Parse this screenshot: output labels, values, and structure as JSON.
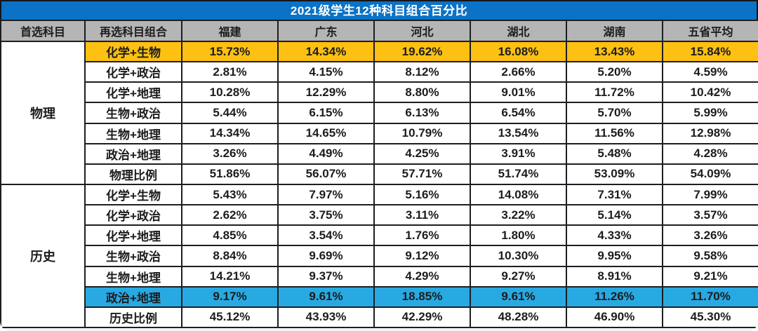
{
  "title": "2021级学生12种科目组合百分比",
  "colors": {
    "title_bar_blue": "#0b72c5",
    "title_text": "#ffffff",
    "header_gray": "#b5b5b5",
    "highlight_orange": "#fdc013",
    "highlight_blue": "#29a9e2",
    "cell_text": "#1c1c1c",
    "border_black": "#1d1e22"
  },
  "table": {
    "headers": [
      "首选科目",
      "再选科目组合",
      "福建",
      "广东",
      "河北",
      "湖北",
      "湖南",
      "五省平均"
    ],
    "sections": [
      {
        "first_subject": "物理",
        "rows": [
          {
            "combo": "化学+生物",
            "values": [
              "15.73%",
              "14.34%",
              "19.62%",
              "16.08%",
              "13.43%",
              "15.84%"
            ],
            "highlight": "orange"
          },
          {
            "combo": "化学+政治",
            "values": [
              "2.81%",
              "4.15%",
              "8.12%",
              "2.66%",
              "5.20%",
              "4.59%"
            ],
            "highlight": null
          },
          {
            "combo": "化学+地理",
            "values": [
              "10.28%",
              "12.29%",
              "8.80%",
              "9.01%",
              "11.72%",
              "10.42%"
            ],
            "highlight": null
          },
          {
            "combo": "生物+政治",
            "values": [
              "5.44%",
              "6.15%",
              "6.13%",
              "6.54%",
              "5.70%",
              "5.99%"
            ],
            "highlight": null
          },
          {
            "combo": "生物+地理",
            "values": [
              "14.34%",
              "14.65%",
              "10.79%",
              "13.54%",
              "11.56%",
              "12.98%"
            ],
            "highlight": null
          },
          {
            "combo": "政治+地理",
            "values": [
              "3.26%",
              "4.49%",
              "4.25%",
              "3.91%",
              "5.48%",
              "4.28%"
            ],
            "highlight": null
          },
          {
            "combo": "物理比例",
            "values": [
              "51.86%",
              "56.07%",
              "57.71%",
              "51.74%",
              "53.09%",
              "54.09%"
            ],
            "highlight": null
          }
        ]
      },
      {
        "first_subject": "历史",
        "rows": [
          {
            "combo": "化学+生物",
            "values": [
              "5.43%",
              "7.97%",
              "5.16%",
              "14.08%",
              "7.31%",
              "7.99%"
            ],
            "highlight": null
          },
          {
            "combo": "化学+政治",
            "values": [
              "2.62%",
              "3.75%",
              "3.11%",
              "3.22%",
              "5.14%",
              "3.57%"
            ],
            "highlight": null
          },
          {
            "combo": "化学+地理",
            "values": [
              "4.85%",
              "3.54%",
              "1.76%",
              "1.80%",
              "4.33%",
              "3.26%"
            ],
            "highlight": null
          },
          {
            "combo": "生物+政治",
            "values": [
              "8.84%",
              "9.69%",
              "9.12%",
              "10.30%",
              "9.95%",
              "9.58%"
            ],
            "highlight": null
          },
          {
            "combo": "生物+地理",
            "values": [
              "14.21%",
              "9.37%",
              "4.29%",
              "9.27%",
              "8.91%",
              "9.21%"
            ],
            "highlight": null
          },
          {
            "combo": "政治+地理",
            "values": [
              "9.17%",
              "9.61%",
              "18.85%",
              "9.61%",
              "11.26%",
              "11.70%"
            ],
            "highlight": "blue"
          },
          {
            "combo": "历史比例",
            "values": [
              "45.12%",
              "43.93%",
              "42.29%",
              "48.28%",
              "46.90%",
              "45.30%"
            ],
            "highlight": null
          }
        ]
      }
    ]
  },
  "chart_data": {
    "type": "table",
    "title": "2021级学生12种科目组合百分比",
    "columns": [
      "首选科目",
      "再选科目组合",
      "福建",
      "广东",
      "河北",
      "湖北",
      "湖南",
      "五省平均"
    ],
    "rows": [
      [
        "物理",
        "化学+生物",
        15.73,
        14.34,
        19.62,
        16.08,
        13.43,
        15.84
      ],
      [
        "物理",
        "化学+政治",
        2.81,
        4.15,
        8.12,
        2.66,
        5.2,
        4.59
      ],
      [
        "物理",
        "化学+地理",
        10.28,
        12.29,
        8.8,
        9.01,
        11.72,
        10.42
      ],
      [
        "物理",
        "生物+政治",
        5.44,
        6.15,
        6.13,
        6.54,
        5.7,
        5.99
      ],
      [
        "物理",
        "生物+地理",
        14.34,
        14.65,
        10.79,
        13.54,
        11.56,
        12.98
      ],
      [
        "物理",
        "政治+地理",
        3.26,
        4.49,
        4.25,
        3.91,
        5.48,
        4.28
      ],
      [
        "物理",
        "物理比例",
        51.86,
        56.07,
        57.71,
        51.74,
        53.09,
        54.09
      ],
      [
        "历史",
        "化学+生物",
        5.43,
        7.97,
        5.16,
        14.08,
        7.31,
        7.99
      ],
      [
        "历史",
        "化学+政治",
        2.62,
        3.75,
        3.11,
        3.22,
        5.14,
        3.57
      ],
      [
        "历史",
        "化学+地理",
        4.85,
        3.54,
        1.76,
        1.8,
        4.33,
        3.26
      ],
      [
        "历史",
        "生物+政治",
        8.84,
        9.69,
        9.12,
        10.3,
        9.95,
        9.58
      ],
      [
        "历史",
        "生物+地理",
        14.21,
        9.37,
        4.29,
        9.27,
        8.91,
        9.21
      ],
      [
        "历史",
        "政治+地理",
        9.17,
        9.61,
        18.85,
        9.61,
        11.26,
        11.7
      ],
      [
        "历史",
        "历史比例",
        45.12,
        43.93,
        42.29,
        48.28,
        46.9,
        45.3
      ]
    ],
    "highlighted_rows": [
      {
        "section": "物理",
        "combo": "化学+生物",
        "color": "#fdc013"
      },
      {
        "section": "历史",
        "combo": "政治+地理",
        "color": "#29a9e2"
      }
    ],
    "units": "percent"
  }
}
